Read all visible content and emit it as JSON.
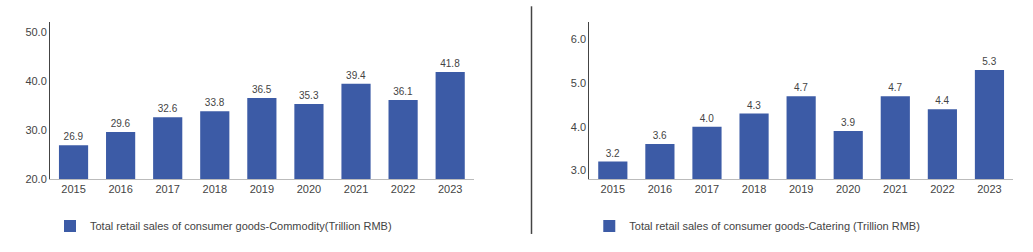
{
  "chart_data": [
    {
      "type": "bar",
      "categories": [
        "2015",
        "2016",
        "2017",
        "2018",
        "2019",
        "2020",
        "2021",
        "2022",
        "2023"
      ],
      "series": [
        {
          "name": "Total retail sales of consumer goods-Commodity(Trillion RMB)",
          "color": "#3C5BA6",
          "values": [
            26.9,
            29.6,
            32.6,
            33.8,
            36.5,
            35.3,
            39.4,
            36.1,
            41.8
          ]
        }
      ],
      "ylim": [
        20.0,
        52.0
      ],
      "yticks": [
        {
          "value": 20,
          "label": "20.0"
        },
        {
          "value": 30,
          "label": "30.0"
        },
        {
          "value": 40,
          "label": "40.0"
        },
        {
          "value": 50,
          "label": "50.0"
        }
      ],
      "data_labels": true,
      "grid": false,
      "legend": "bottom"
    },
    {
      "type": "bar",
      "categories": [
        "2015",
        "2016",
        "2017",
        "2018",
        "2019",
        "2020",
        "2021",
        "2022",
        "2023"
      ],
      "series": [
        {
          "name": "Total retail sales of consumer goods-Catering (Trillion RMB)",
          "color": "#3C5BA6",
          "values": [
            3.2,
            3.6,
            4.0,
            4.3,
            4.7,
            3.9,
            4.7,
            4.4,
            5.3
          ],
          "value_labels": [
            "3.2",
            "3.6",
            "4.0",
            "4.3",
            "4.7",
            "3.9",
            "4.7",
            "4.4",
            "5.3"
          ]
        }
      ],
      "ylim": [
        2.8,
        6.4
      ],
      "yticks": [
        {
          "value": 3,
          "label": "3.0"
        },
        {
          "value": 4,
          "label": "4.0"
        },
        {
          "value": 5,
          "label": "5.0"
        },
        {
          "value": 6,
          "label": "6.0"
        }
      ],
      "data_labels": true,
      "grid": false,
      "legend": "bottom"
    }
  ]
}
